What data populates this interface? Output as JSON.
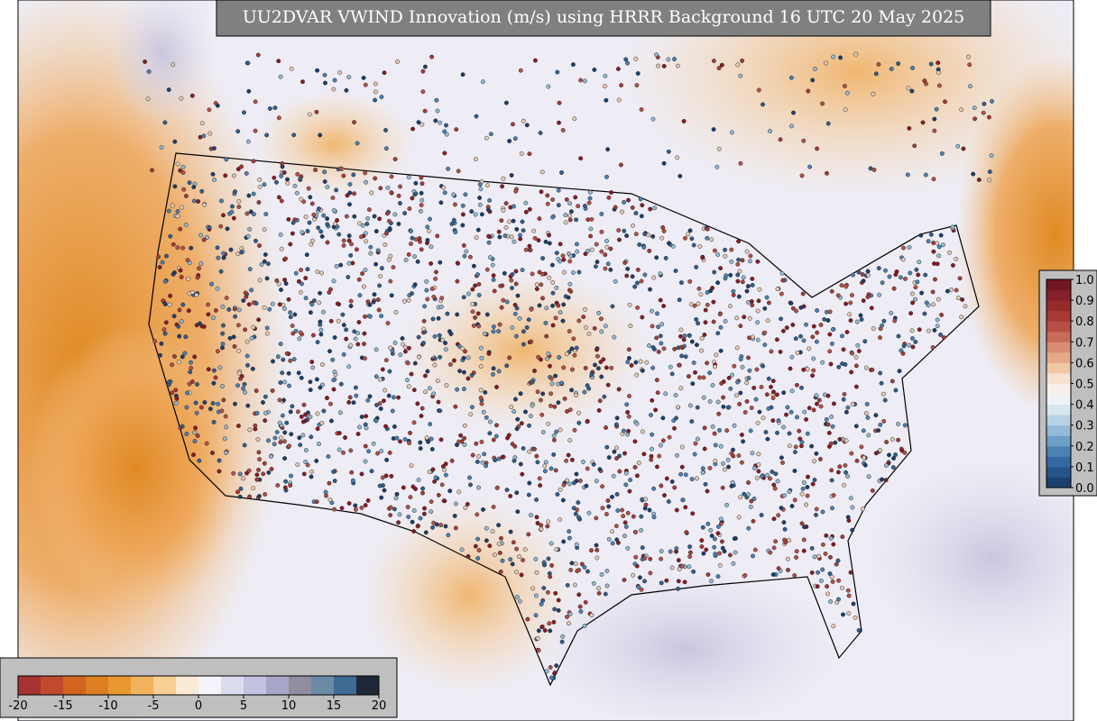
{
  "title": "UU2DVAR VWIND Innovation (m/s) using HRRR Background 16 UTC 20 May 2025",
  "innovation_colorbar": {
    "ticks": [
      -20,
      -15,
      -10,
      -5,
      0,
      5,
      10,
      15,
      20
    ],
    "colors": [
      "#a63232",
      "#c0492e",
      "#d2641f",
      "#dd7e22",
      "#e8982f",
      "#f0b35c",
      "#f6cf95",
      "#fbebd6",
      "#f4f4fa",
      "#dcdcef",
      "#c4c2e0",
      "#a8a6c8",
      "#8e8e9e",
      "#6a8aa6",
      "#3e6a94",
      "#1e2838"
    ]
  },
  "fraction_colorbar": {
    "ticks": [
      {
        "value": 0.0,
        "label": "0.0"
      },
      {
        "value": 0.1,
        "label": "0.1"
      },
      {
        "value": 0.2,
        "label": "0.2"
      },
      {
        "value": 0.3,
        "label": "0.3"
      },
      {
        "value": 0.4,
        "label": "0.4"
      },
      {
        "value": 0.5,
        "label": "0.5"
      },
      {
        "value": 0.6,
        "label": "0.6"
      },
      {
        "value": 0.7,
        "label": "0.7"
      },
      {
        "value": 0.8,
        "label": "0.8"
      },
      {
        "value": 0.9,
        "label": "0.9"
      },
      {
        "value": 1.0,
        "label": "1.0"
      }
    ],
    "colors": [
      "#1b3f6e",
      "#245488",
      "#3368a0",
      "#4b82b4",
      "#6d9ec6",
      "#93bad6",
      "#b7d2e4",
      "#d8e6ef",
      "#eef2f6",
      "#f7f0ea",
      "#f6e0cf",
      "#f0c8a8",
      "#e5a98a",
      "#d98c74",
      "#c96b5a",
      "#b84f45",
      "#a83a36",
      "#962a2a",
      "#84202a",
      "#701622"
    ]
  }
}
